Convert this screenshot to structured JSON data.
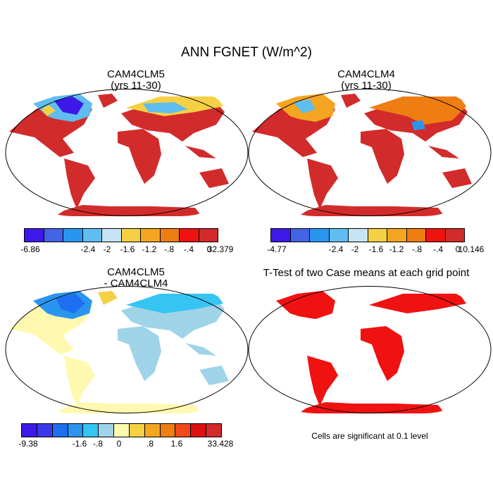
{
  "title": "ANN FGNET (W/m^2)",
  "panels": [
    {
      "title1": "CAM4CLM5",
      "title2": "(yrs 11-30)"
    },
    {
      "title1": "CAM4CLM4",
      "title2": "(yrs 11-30)"
    },
    {
      "title1": "CAM4CLM5",
      "title2": "- CAM4CLM4"
    },
    {
      "title1": "T-Test of two Case means at each grid point",
      "title2": ""
    }
  ],
  "colorbars": [
    {
      "colors": [
        "#3d18e8",
        "#4464e6",
        "#2a95ef",
        "#5fbdf0",
        "#c6e4f3",
        "#f5d044",
        "#f4a521",
        "#ee7d12",
        "#f01111",
        "#d22b2b"
      ],
      "tick_labels": [
        "-6.86",
        "-2.4",
        "-2",
        "-1.6",
        "-1.2",
        "-.8",
        "-.4",
        "0",
        "32.379"
      ]
    },
    {
      "colors": [
        "#3d18e8",
        "#4464e6",
        "#2a95ef",
        "#5fbdf0",
        "#c6e4f3",
        "#f5d044",
        "#f4a521",
        "#ee7d12",
        "#f01111",
        "#d22b2b"
      ],
      "tick_labels": [
        "-4.77",
        "-2.4",
        "-2",
        "-1.6",
        "-1.2",
        "-.8",
        "-.4",
        "0",
        "10.146"
      ]
    },
    {
      "colors": [
        "#3d18e8",
        "#3c38e8",
        "#1e6ef0",
        "#2a95ef",
        "#36c5f3",
        "#9fd4e8",
        "#fff9b0",
        "#f5d044",
        "#f4a521",
        "#ee7d12",
        "#f04a1a",
        "#dc1010",
        "#d22b2b"
      ],
      "tick_labels": [
        "-9.38",
        "-1.6",
        "-.8",
        "0",
        ".8",
        "1.6",
        "33.428"
      ]
    }
  ],
  "significance_note": "Cells are significant at 0.1 level"
}
